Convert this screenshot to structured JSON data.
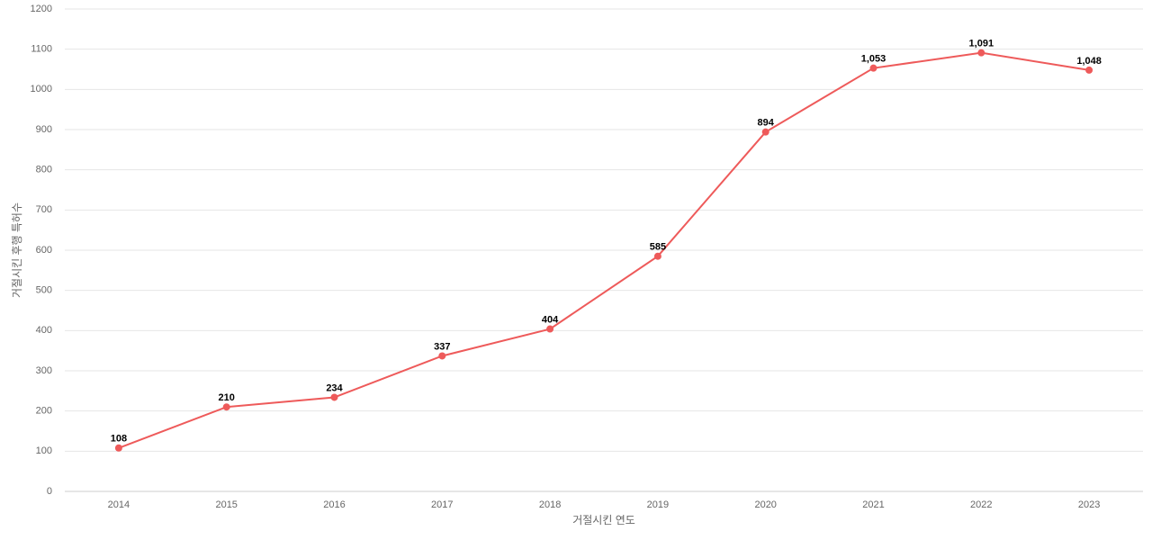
{
  "chart_data": {
    "type": "line",
    "x_label": "거절시킨 연도",
    "y_label": "거절시킨 후행 특허수",
    "categories": [
      "2014",
      "2015",
      "2016",
      "2017",
      "2018",
      "2019",
      "2020",
      "2021",
      "2022",
      "2023"
    ],
    "values": [
      108,
      210,
      234,
      337,
      404,
      585,
      894,
      1053,
      1091,
      1048
    ],
    "value_labels": [
      "108",
      "210",
      "234",
      "337",
      "404",
      "585",
      "894",
      "1,053",
      "1,091",
      "1,048"
    ],
    "color": "#ee5a5a",
    "ylim": [
      0,
      1200
    ],
    "yticks": [
      0,
      100,
      200,
      300,
      400,
      500,
      600,
      700,
      800,
      900,
      1000,
      1100,
      1200
    ],
    "grid": true
  }
}
